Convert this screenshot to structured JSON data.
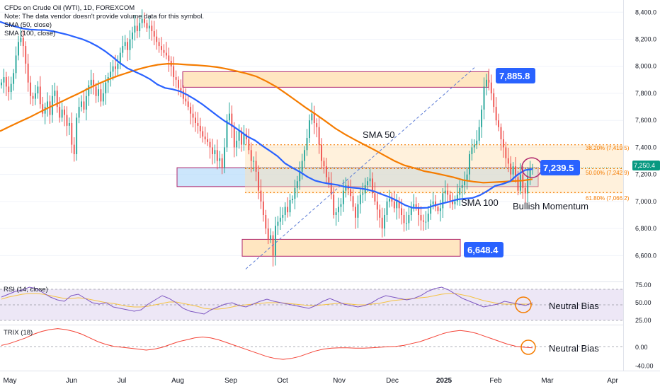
{
  "chart_data": {
    "type": "line",
    "title": "CFDs on Crude Oil (WTI), 1D, FOREXCOM",
    "notice": "Note: The data vendor doesn't provide volume data for this symbol.",
    "legend": [
      "SMA (50, close)",
      "SMA (100, close)"
    ],
    "colors": {
      "up": "#26a69a",
      "down": "#ef5350",
      "sma50": "#2962ff",
      "sma100": "#f57c00",
      "rsi": "#7e57c2",
      "rsi_ma": "#f5c242",
      "trix": "#f44336",
      "tag": "#2962ff",
      "zone_fill": "#ffe0b2",
      "zone_border": "#b0286d",
      "fib": "#f57c00",
      "last": "#089981"
    },
    "x_ticks": [
      "May",
      "Jun",
      "Jul",
      "Aug",
      "Sep",
      "Oct",
      "Nov",
      "Dec",
      "2025",
      "Feb",
      "Mar",
      "Apr"
    ],
    "price_axis": {
      "ylim": [
        6450,
        8480
      ],
      "ticks": [
        "8,400.0",
        "8,200.0",
        "8,000.0",
        "7,800.0",
        "7,600.0",
        "7,400.0",
        "7,200.0",
        "7,000.0",
        "6,800.0",
        "6,600.0"
      ]
    },
    "close": [
      7880,
      7920,
      7850,
      7810,
      7870,
      7950,
      8080,
      8180,
      8210,
      8150,
      8020,
      7880,
      7780,
      7760,
      7800,
      7850,
      7720,
      7650,
      7700,
      7740,
      7640,
      7780,
      7820,
      7700,
      7620,
      7680,
      7640,
      7560,
      7580,
      7420,
      7350,
      7620,
      7700,
      7740,
      7680,
      7780,
      7860,
      7900,
      7850,
      7780,
      7830,
      7740,
      7800,
      7880,
      7920,
      7960,
      8000,
      7980,
      8020,
      8100,
      8150,
      8180,
      8120,
      8200,
      8250,
      8300,
      8260,
      8320,
      8350,
      8320,
      8280,
      8300,
      8260,
      8220,
      8180,
      8150,
      8120,
      8100,
      8080,
      8040,
      8000,
      7920,
      7900,
      7840,
      7820,
      7760,
      7740,
      7700,
      7650,
      7620,
      7580,
      7560,
      7520,
      7480,
      7460,
      7440,
      7400,
      7350,
      7380,
      7300,
      7320,
      7250,
      7400,
      7600,
      7650,
      7550,
      7400,
      7450,
      7520,
      7420,
      7500,
      7460,
      7380,
      7300,
      7300,
      7220,
      7080,
      7000,
      6900,
      6800,
      6720,
      6750,
      6600,
      6820,
      6850,
      6880,
      6900,
      6960,
      6920,
      7010,
      7020,
      7100,
      7150,
      7220,
      7300,
      7380,
      7470,
      7600,
      7650,
      7580,
      7550,
      7420,
      7300,
      7260,
      7180,
      7140,
      7050,
      6900,
      6920,
      6960,
      6980,
      7080,
      7120,
      7090,
      7040,
      6960,
      6880,
      6980,
      7050,
      7060,
      7120,
      7150,
      7170,
      7060,
      7000,
      6940,
      6880,
      6800,
      6900,
      7000,
      7020,
      7000,
      6950,
      7000,
      6950,
      6900,
      6840,
      6840,
      6900,
      6960,
      6980,
      6960,
      6900,
      6860,
      6850,
      6850,
      6910,
      6980,
      7000,
      6960,
      6930,
      6950,
      7060,
      7080,
      7050,
      7000,
      6980,
      7000,
      7050,
      7100,
      7120,
      7150,
      7200,
      7350,
      7400,
      7420,
      7450,
      7550,
      7680,
      7850,
      7900,
      7880,
      7800,
      7700,
      7600,
      7550,
      7460,
      7400,
      7320,
      7280,
      7200,
      7260,
      7180,
      7080,
      7200,
      7100,
      7060,
      7180,
      7250,
      7250
    ],
    "sma50": [
      8330,
      8310,
      8295,
      8280,
      8272,
      8269,
      8268,
      8260,
      8247,
      8234,
      8217,
      8200,
      8177,
      8148,
      8112,
      8070,
      8024,
      7985,
      7960,
      7935,
      7905,
      7865,
      7840,
      7830,
      7815,
      7788,
      7755,
      7718,
      7676,
      7633,
      7593,
      7560,
      7521,
      7480,
      7452,
      7411,
      7374,
      7335,
      7282,
      7249,
      7218,
      7182,
      7155,
      7140,
      7130,
      7123,
      7108,
      7102,
      7097,
      7088,
      7073,
      7051,
      7031,
      7004,
      6973,
      6954,
      6952,
      6954,
      6972,
      6986,
      7000,
      7015,
      7021,
      7026,
      7047,
      7079,
      7115,
      7129,
      7149,
      7198,
      7232,
      7240
    ],
    "sma100": [
      7520,
      7555,
      7590,
      7623,
      7660,
      7697,
      7731,
      7766,
      7800,
      7837,
      7872,
      7903,
      7930,
      7954,
      7978,
      7997,
      8012,
      8019,
      8017,
      8012,
      8008,
      8002,
      7994,
      7981,
      7964,
      7947,
      7925,
      7890,
      7849,
      7799,
      7747,
      7694,
      7646,
      7594,
      7541,
      7496,
      7456,
      7418,
      7380,
      7340,
      7300,
      7268,
      7248,
      7225,
      7211,
      7195,
      7179,
      7158,
      7147,
      7139,
      7142,
      7146,
      7151,
      7155,
      7165
    ],
    "rsi": [
      58,
      62,
      66,
      68,
      72,
      70,
      64,
      58,
      54,
      52,
      60,
      62,
      56,
      50,
      48,
      50,
      44,
      42,
      40,
      38,
      40,
      48,
      54,
      60,
      56,
      50,
      42,
      38,
      36,
      34,
      40,
      44,
      48,
      50,
      46,
      44,
      48,
      52,
      55,
      52,
      50,
      48,
      46,
      44,
      42,
      46,
      52,
      56,
      52,
      48,
      46,
      44,
      46,
      50,
      56,
      60,
      58,
      56,
      54,
      56,
      60,
      66,
      70,
      72,
      68,
      62,
      56,
      52,
      48,
      44,
      46,
      48,
      52,
      50,
      48,
      46,
      50
    ],
    "rsi_ma": [
      55,
      58,
      60,
      62,
      63,
      63,
      62,
      60,
      58,
      56,
      56,
      57,
      56,
      54,
      52,
      50,
      49,
      47,
      45,
      44,
      44,
      45,
      47,
      49,
      51,
      51,
      49,
      47,
      45,
      42,
      41,
      41,
      42,
      44,
      46,
      47,
      48,
      49,
      50,
      50,
      50,
      49,
      48,
      47,
      46,
      46,
      47,
      48,
      49,
      49,
      48,
      47,
      47,
      48,
      49,
      51,
      53,
      54,
      55,
      56,
      57,
      58,
      60,
      62,
      63,
      63,
      61,
      59,
      56,
      53,
      51,
      49,
      48,
      48,
      48,
      48,
      48
    ],
    "rsi_axis": {
      "ylim": [
        20,
        78
      ],
      "ticks": [
        "75.00",
        "50.00",
        "25.00"
      ]
    },
    "trix": [
      4,
      8,
      14,
      20,
      28,
      34,
      38,
      40,
      38,
      34,
      28,
      20,
      12,
      6,
      2,
      0,
      -2,
      -4,
      -6,
      -4,
      0,
      6,
      12,
      16,
      20,
      22,
      20,
      16,
      10,
      4,
      -2,
      -8,
      -14,
      -20,
      -24,
      -26,
      -24,
      -20,
      -14,
      -8,
      -4,
      -2,
      -1,
      -1,
      -2,
      -2,
      -1,
      0,
      1,
      2,
      4,
      8,
      12,
      18,
      24,
      30,
      34,
      36,
      34,
      30,
      24,
      18,
      12,
      6,
      2,
      0,
      -1
    ],
    "trix_axis": {
      "ylim": [
        -44,
        44
      ],
      "ticks": [
        "0.00",
        "-40.00"
      ]
    },
    "levels": {
      "resistance": "7,885.8",
      "current": "7,239.5",
      "support": "6,648.4",
      "last_price": "7,250.4"
    },
    "fibonacci": [
      "38.20% (7,419.5)",
      "50.00% (7,242.9)",
      "61.80% (7,066.2)"
    ],
    "annotations": {
      "sma50": "SMA 50",
      "sma100": "SMA 100",
      "momentum": "Bullish Momentum",
      "rsi_bias": "Neutral Bias",
      "trix_bias": "Neutral Bias"
    },
    "indicators": {
      "rsi": "RSI (14, close)",
      "trix": "TRIX (18)"
    },
    "zones": [
      {
        "from": 7845,
        "to": 7960
      },
      {
        "from": 7110,
        "to": 7250
      },
      {
        "from": 6595,
        "to": 6720
      },
      {
        "from": 7060,
        "to": 7420
      }
    ]
  }
}
